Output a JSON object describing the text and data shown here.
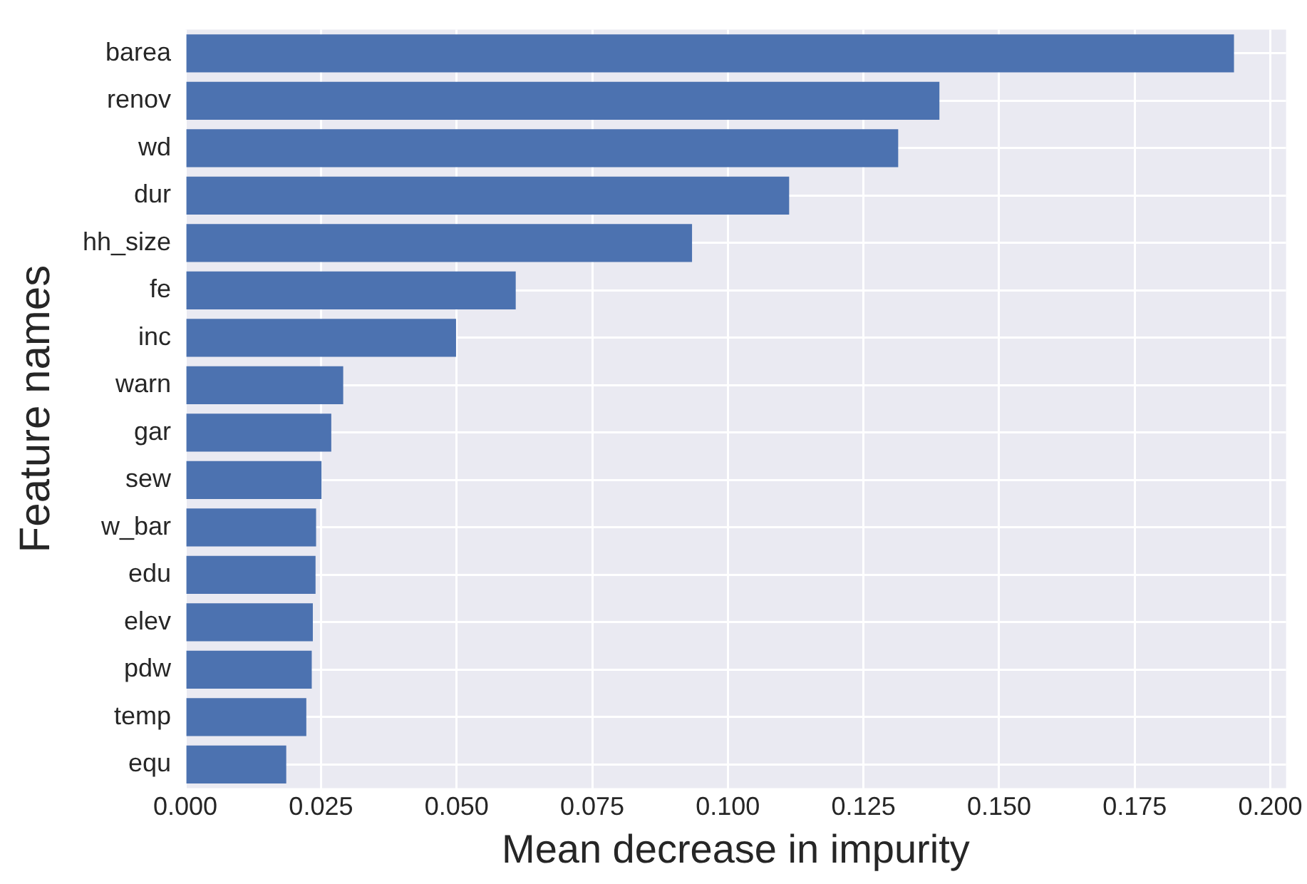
{
  "chart_data": {
    "type": "bar",
    "orientation": "horizontal",
    "xlabel": "Mean decrease in impurity",
    "ylabel": "Feature names",
    "categories": [
      "barea",
      "renov",
      "wd",
      "dur",
      "hh_size",
      "fe",
      "inc",
      "warn",
      "gar",
      "sew",
      "w_bar",
      "edu",
      "elev",
      "pdw",
      "temp",
      "equ"
    ],
    "values": [
      0.1933,
      0.139,
      0.1314,
      0.1113,
      0.0934,
      0.0609,
      0.0499,
      0.0291,
      0.0269,
      0.0251,
      0.0241,
      0.024,
      0.0235,
      0.0233,
      0.0223,
      0.0186
    ],
    "color": "#4c72b0",
    "xlim": [
      0,
      0.2029
    ],
    "xticks": [
      {
        "value": 0,
        "label": "0.000"
      },
      {
        "value": 0.025,
        "label": "0.025"
      },
      {
        "value": 0.05,
        "label": "0.050"
      },
      {
        "value": 0.075,
        "label": "0.075"
      },
      {
        "value": 0.1,
        "label": "0.100"
      },
      {
        "value": 0.125,
        "label": "0.125"
      },
      {
        "value": 0.15,
        "label": "0.150"
      },
      {
        "value": 0.175,
        "label": "0.175"
      },
      {
        "value": 0.2,
        "label": "0.200"
      }
    ],
    "grid": true
  }
}
